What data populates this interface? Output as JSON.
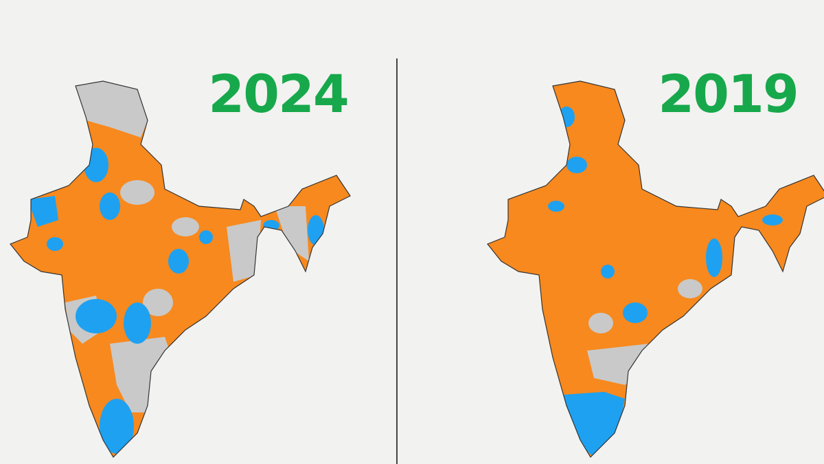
{
  "panels": [
    {
      "title": "2024"
    },
    {
      "title": "2019"
    }
  ]
}
